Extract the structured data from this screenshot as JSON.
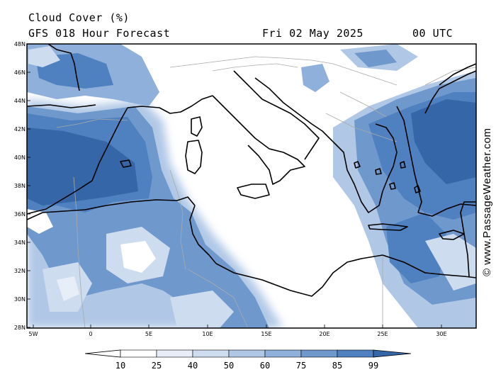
{
  "header": {
    "title": "Cloud Cover (%)",
    "subtitle": "GFS 018 Hour Forecast",
    "date": "Fri 02 May 2025",
    "time": "00 UTC"
  },
  "axes": {
    "lat_labels": [
      "48N",
      "46N",
      "44N",
      "42N",
      "40N",
      "38N",
      "36N",
      "34N",
      "32N",
      "30N",
      "28N"
    ],
    "lon_labels": [
      "5W",
      "0",
      "5E",
      "10E",
      "15E",
      "20E",
      "25E",
      "30E"
    ]
  },
  "map_extent": {
    "lon_min": -6,
    "lon_max": 33,
    "lat_min": 28,
    "lat_max": 48
  },
  "credit": "© www.PassageWeather.com",
  "legend": {
    "levels": [
      "10",
      "25",
      "40",
      "50",
      "60",
      "75",
      "85",
      "99"
    ],
    "colors": [
      "#ffffff",
      "#e8eef8",
      "#cddcef",
      "#b0c8e6",
      "#8eb0da",
      "#6f98cd",
      "#4f80bf",
      "#3566a8"
    ]
  },
  "colors": {
    "frame": "#000000",
    "coast": "#000000",
    "border": "#aaaaaa"
  }
}
